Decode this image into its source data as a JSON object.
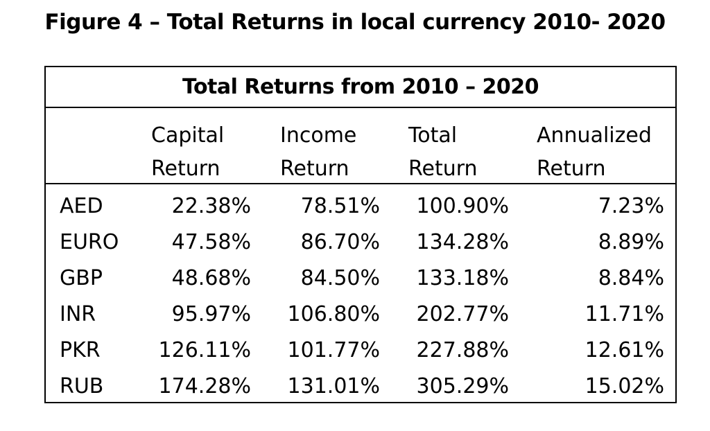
{
  "figure_title": "Figure 4 – Total Returns in local currency 2010- 2020",
  "table": {
    "heading": "Total Returns from 2010 – 2020",
    "columns": [
      {
        "line1": "Capital",
        "line2": "Return"
      },
      {
        "line1": "Income",
        "line2": "Return"
      },
      {
        "line1": "Total",
        "line2": "Return"
      },
      {
        "line1": "Annualized",
        "line2": "Return"
      }
    ],
    "rows": [
      {
        "currency": "AED",
        "capital": "22.38%",
        "income": "78.51%",
        "total": "100.90%",
        "annualized": "7.23%"
      },
      {
        "currency": "EURO",
        "capital": "47.58%",
        "income": "86.70%",
        "total": "134.28%",
        "annualized": "8.89%"
      },
      {
        "currency": "GBP",
        "capital": "48.68%",
        "income": "84.50%",
        "total": "133.18%",
        "annualized": "8.84%"
      },
      {
        "currency": "INR",
        "capital": "95.97%",
        "income": "106.80%",
        "total": "202.77%",
        "annualized": "11.71%"
      },
      {
        "currency": "PKR",
        "capital": "126.11%",
        "income": "101.77%",
        "total": "227.88%",
        "annualized": "12.61%"
      },
      {
        "currency": "RUB",
        "capital": "174.28%",
        "income": "131.01%",
        "total": "305.29%",
        "annualized": "15.02%"
      }
    ]
  }
}
